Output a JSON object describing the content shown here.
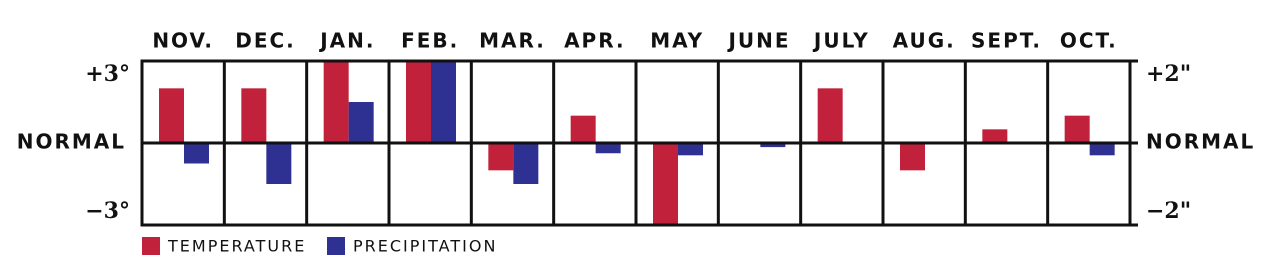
{
  "chart_data": {
    "type": "bar",
    "categories": [
      "NOV.",
      "DEC.",
      "JAN.",
      "FEB.",
      "MAR.",
      "APR.",
      "MAY",
      "JUNE",
      "JULY",
      "AUG.",
      "SEPT.",
      "OCT."
    ],
    "series": [
      {
        "name": "TEMPERATURE",
        "color": "#c1213a",
        "values": [
          2,
          2,
          3,
          3,
          -1,
          1,
          -3,
          0,
          2,
          -1,
          0.5,
          1
        ]
      },
      {
        "name": "PRECIPITATION",
        "color": "#2e3192",
        "axis": "y2",
        "values": [
          -0.5,
          -1,
          1,
          2,
          -1,
          -0.25,
          -0.3,
          -0.1,
          0,
          0,
          0,
          -0.3
        ]
      }
    ],
    "ylim": [
      -3,
      3
    ],
    "yticks": [
      {
        "value": 3,
        "label": "+3°"
      },
      {
        "value": 0,
        "label": "NORMAL"
      },
      {
        "value": -3,
        "label": "−3°"
      }
    ],
    "y2lim": [
      -2,
      2
    ],
    "y2ticks": [
      {
        "value": 2,
        "label": "+2\""
      },
      {
        "value": 0,
        "label": "NORMAL"
      },
      {
        "value": -2,
        "label": "−2\""
      }
    ]
  }
}
